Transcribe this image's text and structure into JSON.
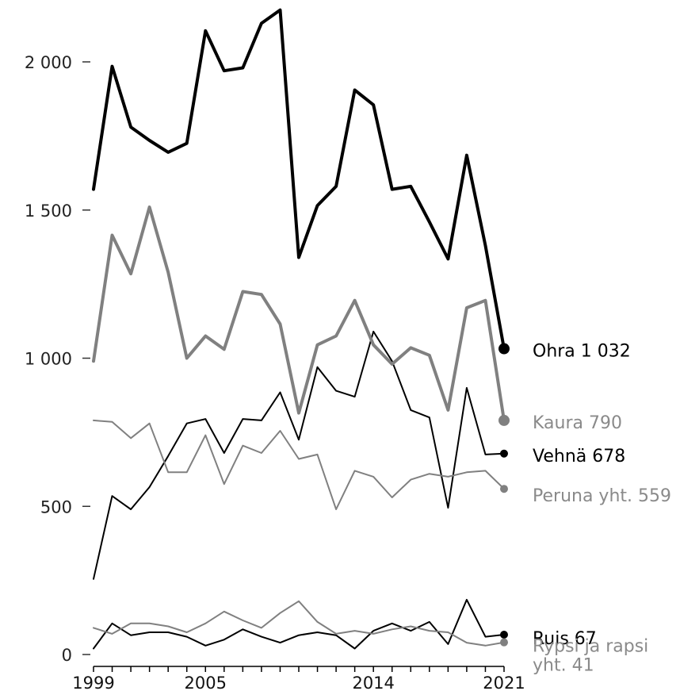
{
  "chart_data": {
    "type": "line",
    "title": "",
    "xlabel": "",
    "ylabel": "",
    "ylim": [
      0,
      2200
    ],
    "xlim": [
      1999,
      2021
    ],
    "grid": false,
    "legend": "direct labels at right end of lines",
    "y_ticks": [
      {
        "value": 0,
        "label": "0"
      },
      {
        "value": 500,
        "label": "500"
      },
      {
        "value": 1000,
        "label": "1 000"
      },
      {
        "value": 1500,
        "label": "1 500"
      },
      {
        "value": 2000,
        "label": "2 000"
      }
    ],
    "x_ticks": [
      {
        "value": 1999,
        "label": "1999"
      },
      {
        "value": 2005,
        "label": "2005"
      },
      {
        "value": 2014,
        "label": "2014"
      },
      {
        "value": 2021,
        "label": "2021"
      }
    ],
    "x": [
      1999,
      2000,
      2001,
      2002,
      2003,
      2004,
      2005,
      2006,
      2007,
      2008,
      2009,
      2010,
      2011,
      2012,
      2013,
      2014,
      2015,
      2016,
      2017,
      2018,
      2019,
      2020,
      2021
    ],
    "series": [
      {
        "name": "Ohra",
        "end_label": [
          "Ohra 1 032"
        ],
        "color": "#000000",
        "width": 4,
        "marker_r": 7,
        "values": [
          1570,
          1985,
          1780,
          1735,
          1695,
          1725,
          2105,
          1970,
          1980,
          2130,
          2175,
          1340,
          1515,
          1580,
          1905,
          1855,
          1570,
          1580,
          1460,
          1335,
          1685,
          1380,
          1032
        ]
      },
      {
        "name": "Kaura",
        "end_label": [
          "Kaura 790"
        ],
        "color": "#808080",
        "width": 4,
        "marker_r": 7,
        "values": [
          990,
          1415,
          1285,
          1510,
          1290,
          1000,
          1075,
          1030,
          1225,
          1215,
          1115,
          815,
          1045,
          1075,
          1195,
          1045,
          980,
          1035,
          1010,
          825,
          1170,
          1195,
          790
        ]
      },
      {
        "name": "Vehnä",
        "end_label": [
          "Vehnä 678"
        ],
        "color": "#000000",
        "width": 2,
        "marker_r": 5,
        "values": [
          255,
          535,
          490,
          565,
          670,
          780,
          795,
          680,
          795,
          790,
          885,
          725,
          970,
          890,
          870,
          1090,
          990,
          825,
          800,
          495,
          900,
          675,
          678
        ]
      },
      {
        "name": "Peruna yht.",
        "end_label": [
          "Peruna yht. 559"
        ],
        "color": "#808080",
        "width": 2,
        "marker_r": 5,
        "values": [
          790,
          785,
          730,
          780,
          615,
          615,
          740,
          575,
          705,
          680,
          755,
          660,
          675,
          490,
          620,
          600,
          530,
          590,
          610,
          600,
          615,
          620,
          559
        ]
      },
      {
        "name": "Ruis",
        "end_label": [
          "Ruis 67"
        ],
        "color": "#000000",
        "width": 2,
        "marker_r": 5,
        "values": [
          20,
          105,
          65,
          75,
          75,
          60,
          30,
          50,
          85,
          60,
          40,
          65,
          75,
          65,
          20,
          80,
          105,
          80,
          110,
          35,
          185,
          60,
          67
        ]
      },
      {
        "name": "Rypsi ja rapsi yht.",
        "end_label": [
          "Rypsi ja rapsi",
          "yht. 41"
        ],
        "color": "#808080",
        "width": 2,
        "marker_r": 5,
        "values": [
          90,
          70,
          105,
          105,
          95,
          75,
          105,
          145,
          115,
          90,
          140,
          180,
          110,
          70,
          80,
          70,
          85,
          95,
          80,
          75,
          40,
          30,
          41
        ]
      }
    ]
  }
}
